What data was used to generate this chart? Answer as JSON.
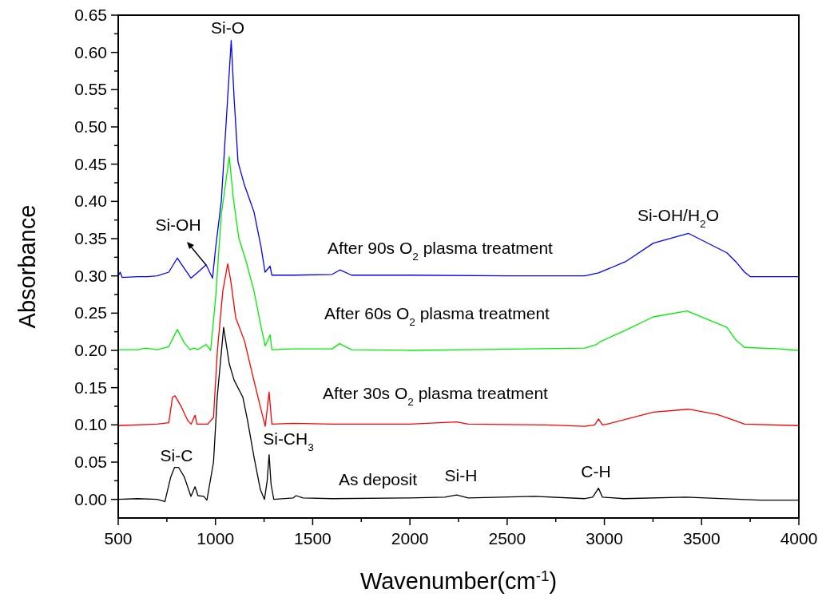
{
  "chart_data": {
    "type": "line",
    "xlabel": "Wavenumber(cm$^{-1}$)",
    "ylabel": "Absorbance",
    "xlim": [
      500,
      4000
    ],
    "ylim": [
      -0.025,
      0.65
    ],
    "xticks": [
      500,
      {
        "value": 750,
        "label": null
      },
      1000,
      {
        "value": 1250,
        "label": null
      },
      1500,
      {
        "value": 1750,
        "label": null
      },
      2000,
      {
        "value": 2250,
        "label": null
      },
      2500,
      {
        "value": 2750,
        "label": null
      },
      3000,
      {
        "value": 3250,
        "label": null
      },
      3500,
      {
        "value": 3750,
        "label": null
      },
      4000
    ],
    "yticks": [
      {
        "value": 0,
        "label": "0.00"
      },
      {
        "value": 0.025,
        "label": null
      },
      0.05,
      {
        "value": 0.075,
        "label": null
      },
      {
        "value": 0.1,
        "label": "0.10"
      },
      {
        "value": 0.125,
        "label": null
      },
      0.15,
      {
        "value": 0.175,
        "label": null
      },
      {
        "value": 0.2,
        "label": "0.20"
      },
      {
        "value": 0.225,
        "label": null
      },
      0.25,
      {
        "value": 0.275,
        "label": null
      },
      {
        "value": 0.3,
        "label": "0.30"
      },
      {
        "value": 0.325,
        "label": null
      },
      0.35,
      {
        "value": 0.375,
        "label": null
      },
      {
        "value": 0.4,
        "label": "0.40"
      },
      {
        "value": 0.425,
        "label": null
      },
      0.45,
      {
        "value": 0.475,
        "label": null
      },
      {
        "value": 0.5,
        "label": "0.50"
      },
      {
        "value": 0.525,
        "label": null
      },
      0.55,
      {
        "value": 0.575,
        "label": null
      },
      {
        "value": 0.6,
        "label": "0.60"
      },
      {
        "value": 0.625,
        "label": null
      },
      0.65
    ],
    "grid": false,
    "marker": "none",
    "line_style": "solid",
    "series": [
      {
        "color": "#000000",
        "x": [
          500,
          600,
          700,
          740,
          770,
          790,
          810,
          840,
          874,
          895,
          910,
          940,
          956,
          990,
          1009,
          1042,
          1071,
          1096,
          1141,
          1165,
          1198,
          1231,
          1252,
          1266,
          1276,
          1286,
          1300,
          1400,
          1415,
          1450,
          1600,
          2000,
          2180,
          2240,
          2300,
          2640,
          2900,
          2940,
          2970,
          2990,
          3100,
          3420,
          3800,
          4000
        ],
        "values": [
          0.0,
          0.001,
          0.0,
          -0.003,
          0.03,
          0.043,
          0.043,
          0.03,
          0.004,
          0.017,
          0.005,
          0.004,
          -0.001,
          0.05,
          0.137,
          0.231,
          0.182,
          0.16,
          0.137,
          0.106,
          0.057,
          0.013,
          0.0,
          0.025,
          0.06,
          0.02,
          0.0,
          0.002,
          0.005,
          0.002,
          0.001,
          0.002,
          0.003,
          0.006,
          0.002,
          0.004,
          0.001,
          0.003,
          0.015,
          0.003,
          0.001,
          0.003,
          -0.001,
          -0.001
        ]
      },
      {
        "color": "#ff0000",
        "x": [
          500,
          700,
          760,
          779,
          792,
          825,
          857,
          875,
          895,
          905,
          960,
          990,
          1010,
          1038,
          1063,
          1079,
          1104,
          1149,
          1190,
          1231,
          1256,
          1276,
          1290,
          1400,
          1600,
          2000,
          2240,
          2300,
          2700,
          2900,
          2950,
          2970,
          2990,
          3014,
          3252,
          3433,
          3581,
          3659,
          3721,
          4000
        ],
        "values": [
          0.099,
          0.101,
          0.103,
          0.137,
          0.139,
          0.124,
          0.106,
          0.101,
          0.113,
          0.101,
          0.101,
          0.11,
          0.2,
          0.28,
          0.316,
          0.293,
          0.244,
          0.213,
          0.168,
          0.124,
          0.098,
          0.144,
          0.101,
          0.102,
          0.101,
          0.101,
          0.104,
          0.101,
          0.1,
          0.098,
          0.1,
          0.108,
          0.1,
          0.101,
          0.117,
          0.121,
          0.114,
          0.107,
          0.101,
          0.099
        ]
      },
      {
        "color": "#00ee00",
        "x": [
          500,
          600,
          640,
          700,
          760,
          804,
          840,
          870,
          890,
          910,
          952,
          975,
          1001,
          1030,
          1071,
          1092,
          1120,
          1157,
          1198,
          1235,
          1256,
          1281,
          1290,
          1400,
          1600,
          1638,
          1700,
          2000,
          2300,
          2600,
          2900,
          2960,
          2981,
          3108,
          3252,
          3425,
          3630,
          3676,
          3721,
          3900,
          4000
        ],
        "values": [
          0.201,
          0.201,
          0.203,
          0.201,
          0.205,
          0.228,
          0.21,
          0.201,
          0.203,
          0.201,
          0.208,
          0.2,
          0.271,
          0.382,
          0.46,
          0.404,
          0.351,
          0.32,
          0.28,
          0.231,
          0.206,
          0.221,
          0.201,
          0.202,
          0.202,
          0.209,
          0.201,
          0.2,
          0.201,
          0.202,
          0.203,
          0.208,
          0.212,
          0.227,
          0.245,
          0.253,
          0.231,
          0.214,
          0.204,
          0.202,
          0.2
        ]
      },
      {
        "color": "#0000ff",
        "x": [
          500,
          510,
          520,
          600,
          650,
          700,
          760,
          804,
          840,
          874,
          910,
          952,
          985,
          1001,
          1030,
          1081,
          1096,
          1116,
          1149,
          1198,
          1235,
          1255,
          1281,
          1290,
          1400,
          1600,
          1640,
          1700,
          2000,
          2500,
          2900,
          2970,
          3108,
          3252,
          3433,
          3630,
          3676,
          3721,
          3750,
          4000
        ],
        "values": [
          0.3,
          0.305,
          0.298,
          0.299,
          0.299,
          0.3,
          0.305,
          0.324,
          0.31,
          0.297,
          0.305,
          0.315,
          0.297,
          0.338,
          0.4,
          0.616,
          0.538,
          0.453,
          0.422,
          0.386,
          0.338,
          0.305,
          0.313,
          0.301,
          0.301,
          0.302,
          0.308,
          0.301,
          0.301,
          0.3,
          0.3,
          0.304,
          0.319,
          0.344,
          0.357,
          0.331,
          0.319,
          0.305,
          0.299,
          0.299
        ]
      }
    ],
    "annotations": [
      "Si-O",
      "Si-OH",
      "Si-C",
      "Si-CH$_{3}$",
      "As deposit",
      "Si-H",
      "C-H",
      "Si-OH/H$_{2}$O",
      "After 90s O$_{2}$ plasma treatment",
      "After 60s O$_{2}$ plasma treatment",
      "After 30s O$_{2}$ plasma treatment"
    ]
  }
}
